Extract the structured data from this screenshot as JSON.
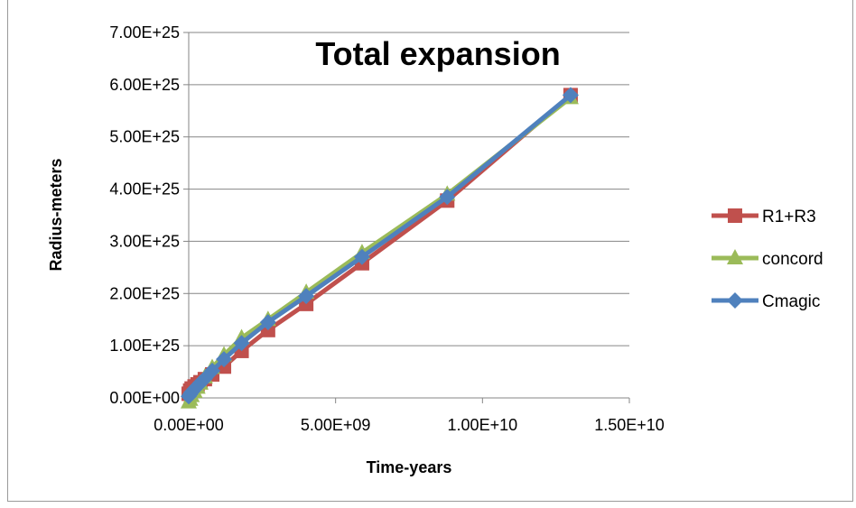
{
  "chart_data": {
    "type": "line",
    "title": "Total expansion",
    "xlabel": "Time-years",
    "ylabel": "Radius-meters",
    "xlim": [
      0,
      15000000000
    ],
    "ylim": [
      0,
      70000000000000000000000000
    ],
    "xticks": [
      0,
      5000000000,
      10000000000,
      15000000000
    ],
    "xtick_labels": [
      "0.00E+00",
      "5.00E+09",
      "1.00E+10",
      "1.50E+10"
    ],
    "yticks": [
      0,
      10000000000000000000000000,
      20000000000000000000000000,
      30000000000000000000000000,
      40000000000000000000000000,
      50000000000000000000000000,
      60000000000000000000000000,
      70000000000000000000000000
    ],
    "ytick_labels": [
      "0.00E+00",
      "1.00E+25",
      "2.00E+25",
      "3.00E+25",
      "4.00E+25",
      "5.00E+25",
      "6.00E+25",
      "7.00E+25"
    ],
    "grid": "horizontal",
    "legend_position": "right",
    "series": [
      {
        "name": "R1+R3",
        "color": "#c0504d",
        "marker": "square",
        "x": [
          0,
          50000000,
          100000000,
          200000000,
          300000000,
          400000000,
          550000000,
          800000000,
          1200000000,
          1800000000,
          2700000000,
          4000000000,
          5900000000,
          8800000000,
          13000000000
        ],
        "y": [
          800000000000000000000000,
          1400000000000000000000000,
          1800000000000000000000000,
          2200000000000000000000000,
          2600000000000000000000000,
          3000000000000000000000000,
          3600000000000000000000000,
          4500000000000000000000000,
          6000000000000000000000000,
          9000000000000000000000000,
          13000000000000000000000000,
          18000000000000000000000000,
          25800000000000000000000000,
          37800000000000000000000000,
          58000000000000000000000000
        ]
      },
      {
        "name": "concord",
        "color": "#9bbb59",
        "marker": "triangle",
        "x": [
          0,
          50000000,
          100000000,
          200000000,
          300000000,
          400000000,
          550000000,
          800000000,
          1200000000,
          1800000000,
          2700000000,
          4000000000,
          5900000000,
          8800000000,
          13000000000
        ],
        "y": [
          -800000000000000000000000,
          -300000000000000000000000,
          400000000000000000000000,
          1200000000000000000000000,
          2000000000000000000000000,
          2800000000000000000000000,
          4000000000000000000000000,
          5800000000000000000000000,
          8200000000000000000000000,
          11500000000000000000000000,
          15000000000000000000000000,
          20200000000000000000000000,
          27800000000000000000000000,
          39000000000000000000000000,
          57500000000000000000000000
        ]
      },
      {
        "name": "Cmagic",
        "color": "#4f81bd",
        "marker": "diamond",
        "x": [
          0,
          50000000,
          100000000,
          200000000,
          300000000,
          400000000,
          550000000,
          800000000,
          1200000000,
          1800000000,
          2700000000,
          4000000000,
          5900000000,
          8800000000,
          13000000000
        ],
        "y": [
          300000000000000000000000,
          700000000000000000000000,
          1100000000000000000000000,
          1700000000000000000000000,
          2300000000000000000000000,
          2900000000000000000000000,
          3700000000000000000000000,
          5200000000000000000000000,
          7400000000000000000000000,
          10500000000000000000000000,
          14500000000000000000000000,
          19500000000000000000000000,
          27000000000000000000000000,
          38500000000000000000000000,
          58000000000000000000000000
        ]
      }
    ]
  }
}
